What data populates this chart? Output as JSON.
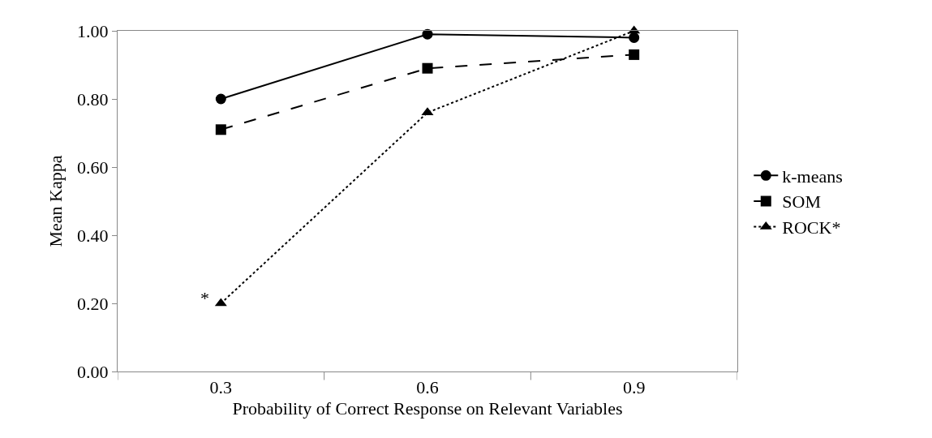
{
  "chart_data": {
    "type": "line",
    "xlabel": "Probability of Correct Response on Relevant Variables",
    "ylabel": "Mean Kappa",
    "categories": [
      "0.3",
      "0.6",
      "0.9"
    ],
    "series": [
      {
        "name": "k-means",
        "color": "#000000",
        "values": [
          0.8,
          0.99,
          0.98
        ],
        "marker": "circle",
        "line_style": "solid"
      },
      {
        "name": "SOM",
        "color": "#000000",
        "values": [
          0.71,
          0.89,
          0.93
        ],
        "marker": "square",
        "line_style": "dashed"
      },
      {
        "name": "ROCK*",
        "color": "#000000",
        "values": [
          0.2,
          0.76,
          1.0
        ],
        "marker": "triangle",
        "line_style": "dotted"
      }
    ],
    "ylim": [
      0,
      1
    ],
    "yticks": [
      {
        "value": 0,
        "label": "0.00"
      },
      {
        "value": 0.2,
        "label": "0.20"
      },
      {
        "value": 0.4,
        "label": "0.40"
      },
      {
        "value": 0.6,
        "label": "0.60"
      },
      {
        "value": 0.8,
        "label": "0.80"
      },
      {
        "value": 1,
        "label": "1.00"
      }
    ],
    "grid": false,
    "legend": "right",
    "annotations": [
      {
        "text": "*",
        "x": "0.3",
        "y": 0.2
      }
    ]
  }
}
